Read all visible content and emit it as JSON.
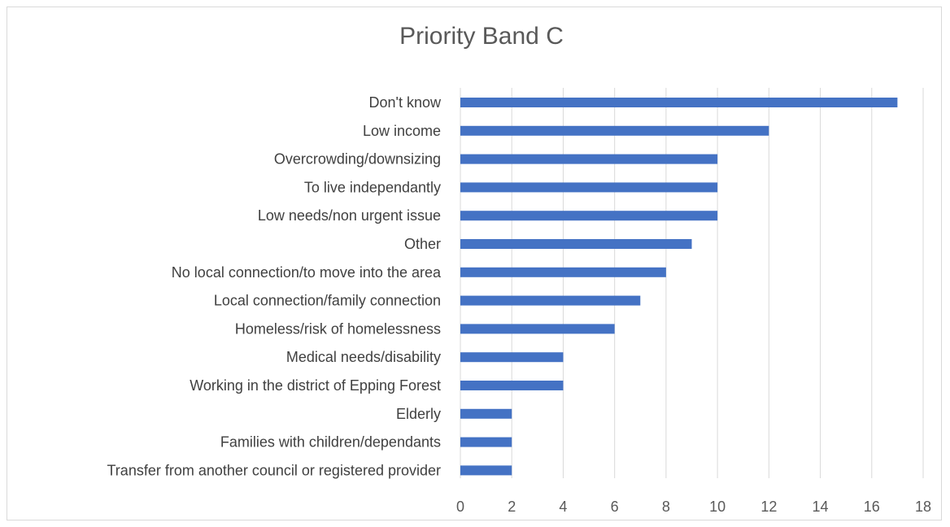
{
  "chart_data": {
    "type": "bar",
    "orientation": "horizontal",
    "title": "Priority Band C",
    "categories": [
      "Don't know",
      "Low income",
      "Overcrowding/downsizing",
      "To live independantly",
      "Low needs/non urgent issue",
      "Other",
      "No local connection/to move into the area",
      "Local connection/family connection",
      "Homeless/risk of homelessness",
      "Medical needs/disability",
      "Working in the district of Epping Forest",
      "Elderly",
      "Families with children/dependants",
      "Transfer from another council or registered provider"
    ],
    "values": [
      17,
      12,
      10,
      10,
      10,
      9,
      8,
      7,
      6,
      4,
      4,
      2,
      2,
      2
    ],
    "xlim": [
      0,
      18
    ],
    "xticks": [
      "0",
      "2",
      "4",
      "6",
      "8",
      "10",
      "12",
      "14",
      "16",
      "18"
    ],
    "grid": "vertical",
    "bar_color": "#4472c4",
    "grid_color": "#d9d9d9"
  }
}
